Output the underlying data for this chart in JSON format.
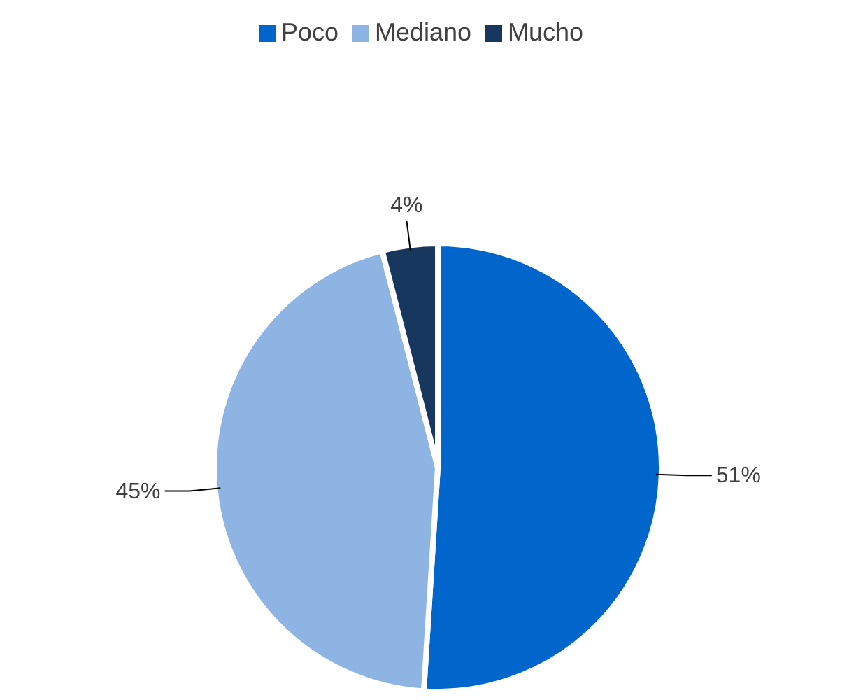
{
  "chart_data": {
    "type": "pie",
    "categories": [
      "Poco",
      "Mediano",
      "Mucho"
    ],
    "values": [
      51,
      45,
      4
    ],
    "colors": [
      "#0066cc",
      "#8eb4e3",
      "#17375e"
    ],
    "value_labels": [
      "51%",
      "45%",
      "4%"
    ],
    "legend": "top"
  }
}
